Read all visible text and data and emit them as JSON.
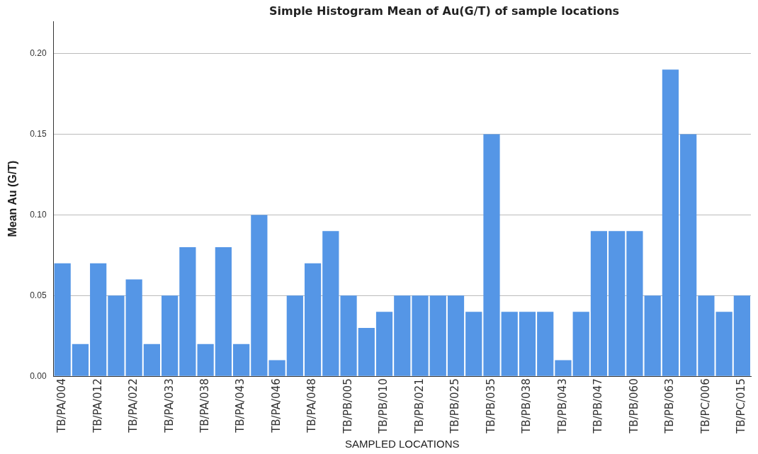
{
  "chart_data": {
    "type": "bar",
    "title": "Simple Histogram Mean of Au(G/T) of sample locations",
    "xlabel": "SAMPLED LOCATIONS",
    "ylabel": "Mean Au (G/T)",
    "categories": [
      "TB/PA/004",
      null,
      "TB/PA/012",
      null,
      "TB/PA/022",
      null,
      "TB/PA/033",
      null,
      "TB/PA/038",
      null,
      "TB/PA/043",
      null,
      "TB/PA/046",
      null,
      "TB/PA/048",
      null,
      "TB/PB/005",
      null,
      "TB/PB/010",
      null,
      "TB/PB/021",
      null,
      "TB/PB/025",
      null,
      "TB/PB/035",
      null,
      "TB/PB/038",
      null,
      "TB/PB/043",
      null,
      "TB/PB/047",
      null,
      "TB/PB/060",
      null,
      "TB/PB/063",
      null,
      "TB/PC/006",
      null,
      "TB/PC/015"
    ],
    "values": [
      0.07,
      0.02,
      0.07,
      0.05,
      0.06,
      0.02,
      0.05,
      0.08,
      0.02,
      0.08,
      0.02,
      0.1,
      0.01,
      0.05,
      0.07,
      0.09,
      0.05,
      0.03,
      0.04,
      0.05,
      0.05,
      0.05,
      0.05,
      0.04,
      0.15,
      0.04,
      0.04,
      0.04,
      0.01,
      0.04,
      0.09,
      0.09,
      0.09,
      0.05,
      0.19,
      0.15,
      0.05,
      0.04,
      0.05
    ],
    "color": "#5596e6",
    "ylim": [
      0,
      0.22
    ],
    "yticks": [
      {
        "value": 0,
        "label": "0.00"
      },
      {
        "value": 0.05,
        "label": "0.05"
      },
      {
        "value": 0.1,
        "label": "0.10"
      },
      {
        "value": 0.15,
        "label": "0.15"
      },
      {
        "value": 0.2,
        "label": "0.20"
      }
    ],
    "grid": "y"
  }
}
